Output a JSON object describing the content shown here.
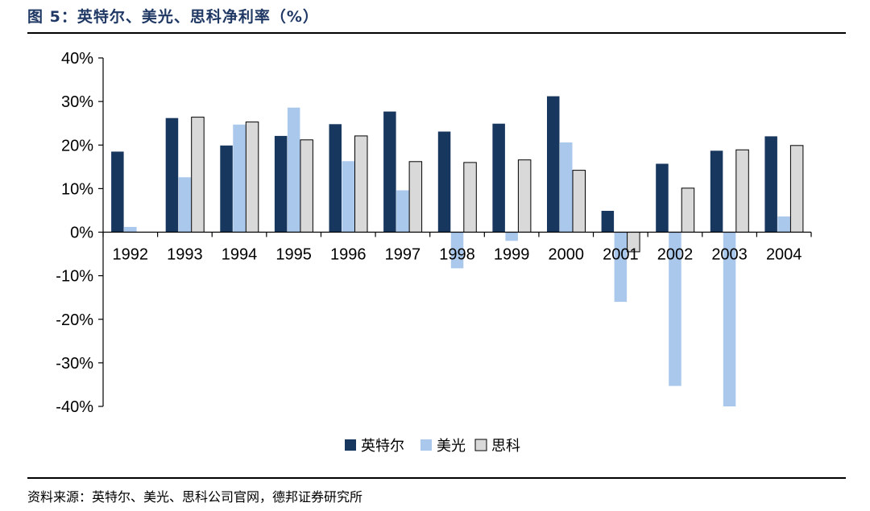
{
  "header": {
    "title": "图 5：英特尔、美光、思科净利率（%）"
  },
  "footer": {
    "source": "资料来源：英特尔、美光、思科公司官网，德邦证券研究所"
  },
  "chart_data": {
    "type": "bar",
    "title": "图 5：英特尔、美光、思科净利率（%）",
    "xlabel": "",
    "ylabel": "",
    "categories": [
      "1992",
      "1993",
      "1994",
      "1995",
      "1996",
      "1997",
      "1998",
      "1999",
      "2000",
      "2001",
      "2002",
      "2003",
      "2004"
    ],
    "ylim": [
      -40,
      40
    ],
    "yticks": [
      "40%",
      "30%",
      "20%",
      "10%",
      "0%",
      "-10%",
      "-20%",
      "-30%",
      "-40%"
    ],
    "ytick_values": [
      40,
      30,
      20,
      10,
      0,
      -10,
      -20,
      -30,
      -40
    ],
    "grid": false,
    "legend_position": "bottom-center",
    "series": [
      {
        "name": "英特尔",
        "color": "#17375e",
        "values": [
          18.5,
          26.2,
          19.9,
          22.1,
          24.8,
          27.7,
          23.1,
          24.9,
          31.2,
          4.9,
          15.7,
          18.7,
          22.0
        ]
      },
      {
        "name": "美光",
        "color": "#a9c8ec",
        "values": [
          1.2,
          12.6,
          24.7,
          28.6,
          16.3,
          9.6,
          -8.3,
          -2.0,
          20.6,
          -16.0,
          -35.3,
          -40.0,
          3.6
        ]
      },
      {
        "name": "思科",
        "color": "#d9d9d9",
        "values": [
          null,
          26.4,
          25.3,
          21.2,
          22.1,
          16.2,
          16.0,
          16.6,
          14.2,
          -4.5,
          10.1,
          18.9,
          19.9
        ]
      }
    ]
  }
}
